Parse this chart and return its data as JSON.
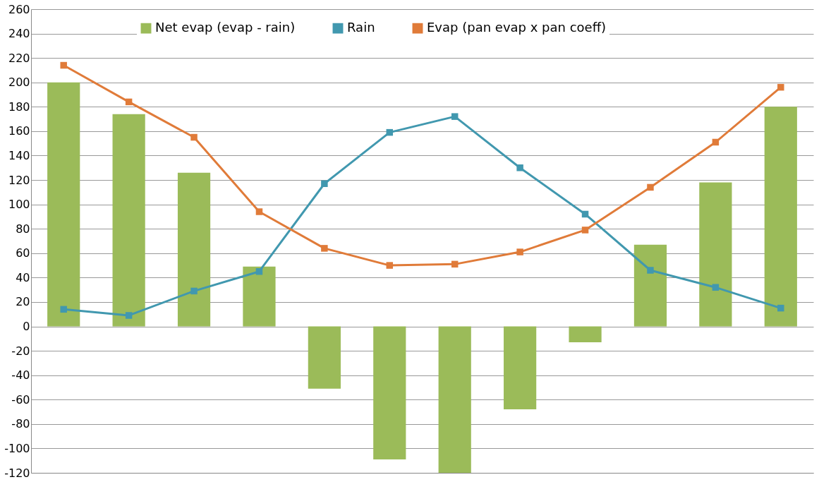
{
  "chart_data": {
    "type": "bar",
    "categories": [
      null,
      null,
      null,
      null,
      null,
      null,
      null,
      null,
      null,
      null,
      null,
      null
    ],
    "series": [
      {
        "name": "Net evap (evap - rain)",
        "color": "#9bbb59",
        "values": [
          200,
          174,
          126,
          49,
          -51,
          -109,
          -120,
          -68,
          -13,
          67,
          118,
          180
        ]
      },
      {
        "name": "Rain",
        "type": "line",
        "color": "#4198af",
        "values": [
          14,
          9,
          29,
          45,
          117,
          159,
          172,
          130,
          92,
          46,
          32,
          15
        ]
      },
      {
        "name": "Evap (pan evap x pan coeff)",
        "type": "line",
        "color": "#e07b39",
        "values": [
          214,
          184,
          155,
          94,
          64,
          50,
          51,
          61,
          79,
          114,
          151,
          196
        ]
      }
    ],
    "ylim": [
      -120,
      260
    ],
    "yticks": [
      -120,
      -100,
      -80,
      -60,
      -40,
      -20,
      0,
      20,
      40,
      60,
      80,
      100,
      120,
      140,
      160,
      180,
      200,
      220,
      240,
      260
    ],
    "grid": "y",
    "legend": "top",
    "marker": "square",
    "line_style": "solid",
    "tick_labels": "y"
  }
}
